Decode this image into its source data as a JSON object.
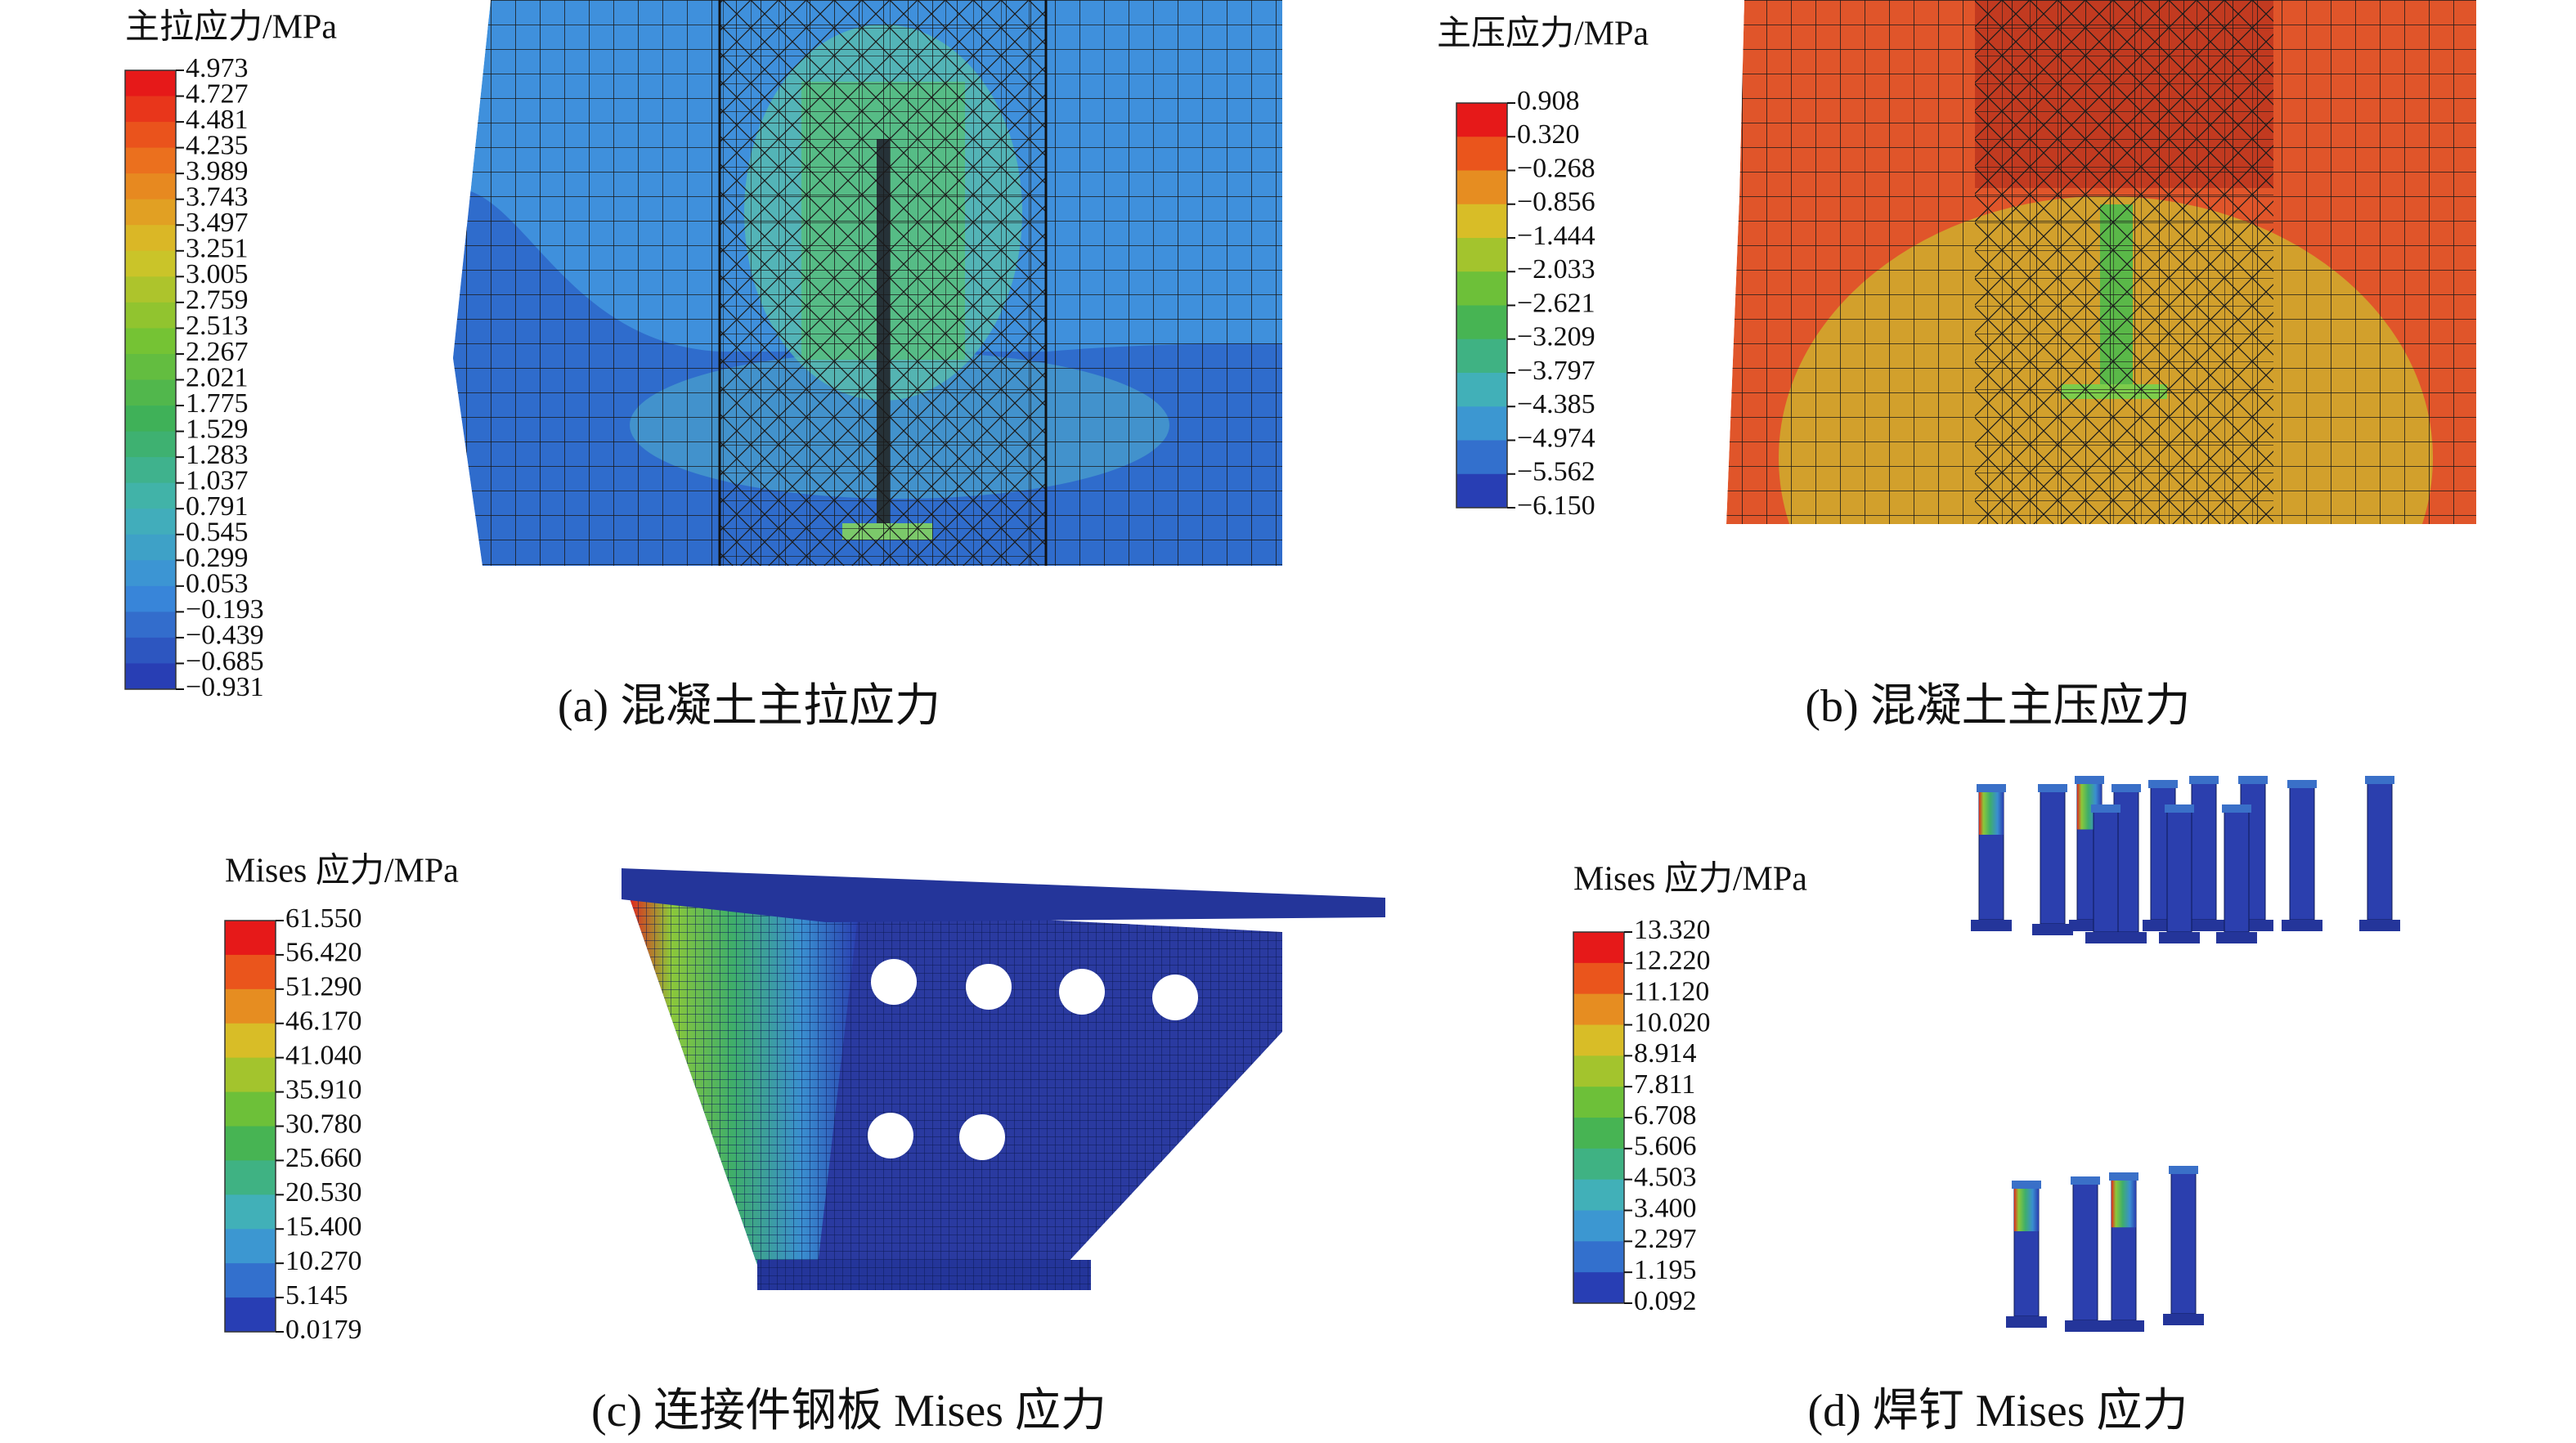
{
  "panels": [
    {
      "legend_title": "主拉应力/MPa",
      "legend_labels": [
        "4.973",
        "4.727",
        "4.481",
        "4.235",
        "3.989",
        "3.743",
        "3.497",
        "3.251",
        "3.005",
        "2.759",
        "2.513",
        "2.267",
        "2.021",
        "1.775",
        "1.529",
        "1.283",
        "1.037",
        "0.791",
        "0.545",
        "0.299",
        "0.053",
        "−0.193",
        "−0.439",
        "−0.685",
        "−0.931"
      ],
      "caption": "(a) 混凝土主拉应力"
    },
    {
      "legend_title": "主压应力/MPa",
      "legend_labels": [
        "0.908",
        "0.320",
        "−0.268",
        "−0.856",
        "−1.444",
        "−2.033",
        "−2.621",
        "−3.209",
        "−3.797",
        "−4.385",
        "−4.974",
        "−5.562",
        "−6.150"
      ],
      "caption": "(b) 混凝土主压应力"
    },
    {
      "legend_title": "Mises 应力/MPa",
      "legend_labels": [
        "61.550",
        "56.420",
        "51.290",
        "46.170",
        "41.040",
        "35.910",
        "30.780",
        "25.660",
        "20.530",
        "15.400",
        "10.270",
        "5.145",
        "0.0179"
      ],
      "caption": "(c) 连接件钢板 Mises 应力"
    },
    {
      "legend_title": "Mises 应力/MPa",
      "legend_labels": [
        "13.320",
        "12.220",
        "11.120",
        "10.020",
        "8.914",
        "7.811",
        "6.708",
        "5.606",
        "4.503",
        "3.400",
        "2.297",
        "1.195",
        "0.092"
      ],
      "caption": "(d) 焊钉 Mises 应力"
    }
  ]
}
